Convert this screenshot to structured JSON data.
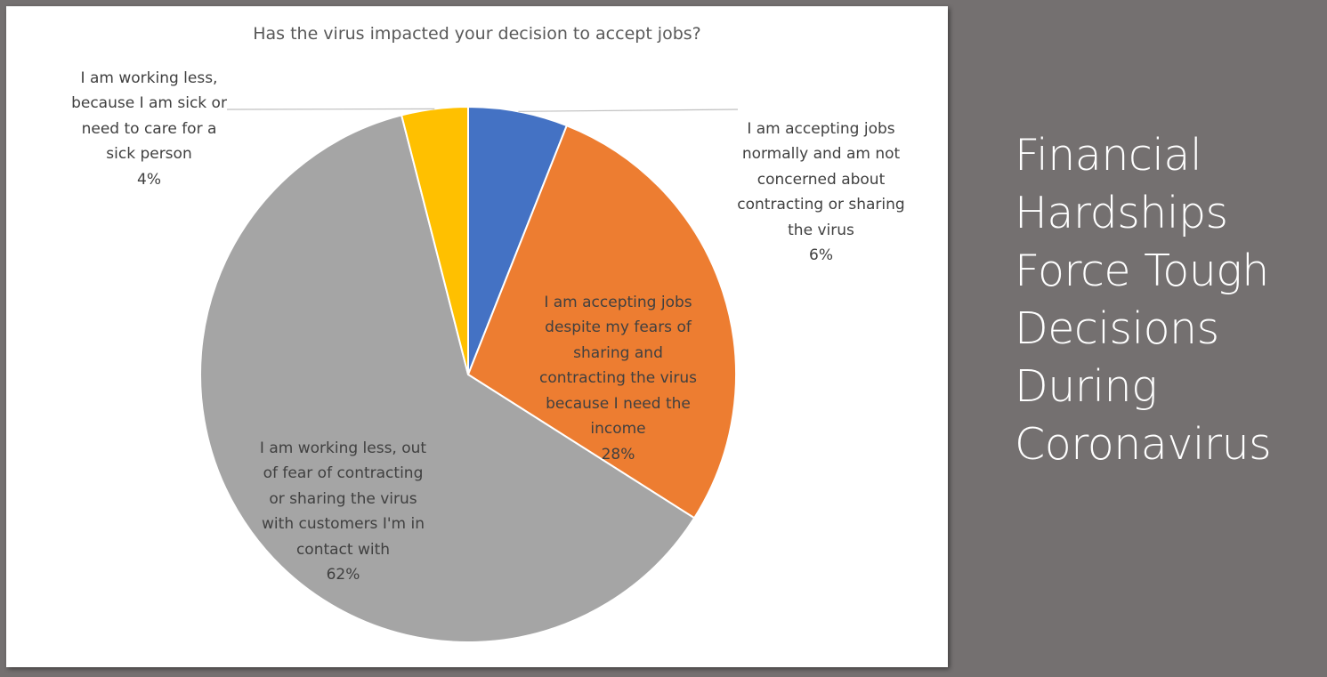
{
  "slide": {
    "title": "Financial\nHardships\nForce Tough\nDecisions\nDuring\nCoronavirus"
  },
  "chart_data": {
    "type": "pie",
    "title": "Has the virus impacted your decision to accept jobs?",
    "slices": [
      {
        "label": "I am accepting jobs normally and am not concerned about contracting or sharing the virus",
        "value": 6,
        "pct_label": "6%",
        "color": "#4472C4"
      },
      {
        "label": "I am accepting jobs despite my fears of sharing and contracting the virus because I need the income",
        "value": 28,
        "pct_label": "28%",
        "color": "#ED7D31"
      },
      {
        "label": "I am working less, out of fear of contracting or sharing the virus with customers I'm in contact with",
        "value": 62,
        "pct_label": "62%",
        "color": "#A5A5A5"
      },
      {
        "label": "I am working less, because I am sick or need to care for a sick person",
        "value": 4,
        "pct_label": "4%",
        "color": "#FFC000"
      }
    ],
    "legend": "none"
  }
}
